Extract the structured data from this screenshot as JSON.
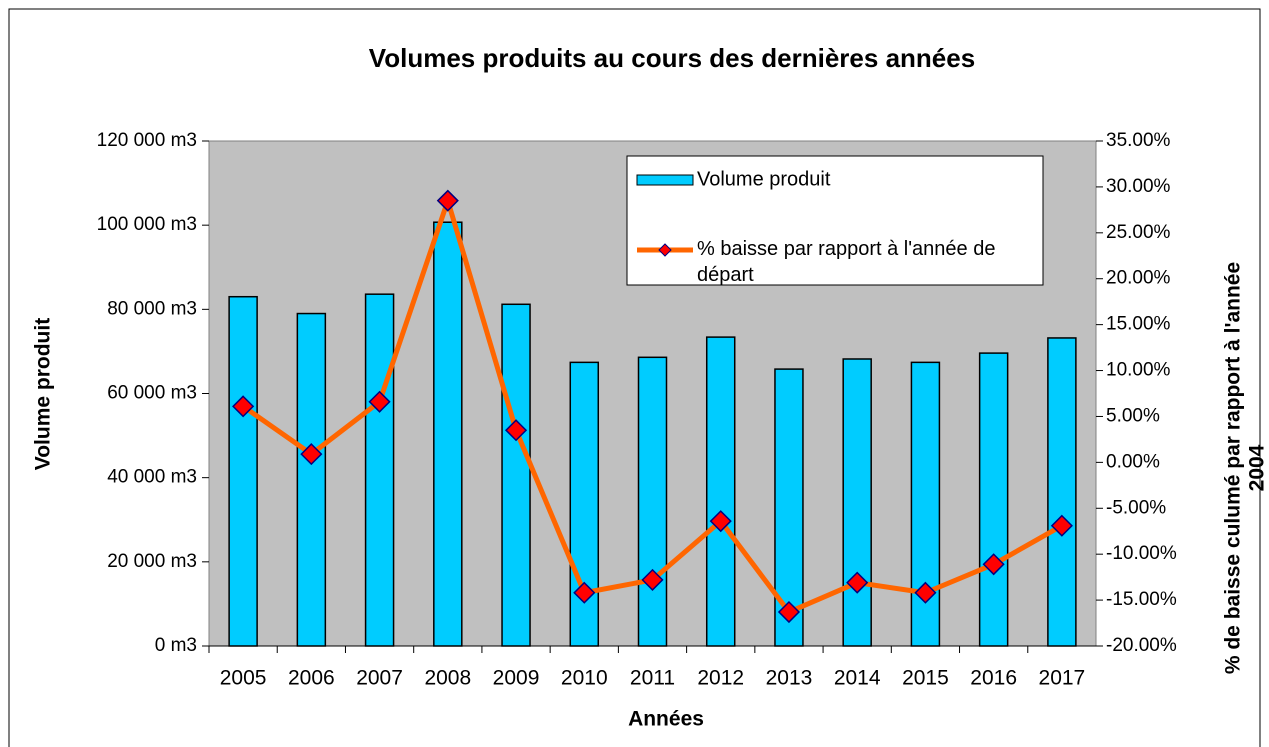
{
  "chart_data": {
    "type": "bar_line",
    "title": "Volumes produits au cours des dernières années",
    "xlabel": "Années",
    "ylabel": "Volume produit",
    "y2label": [
      "% de baisse culumé par rapport à l'année",
      "2004"
    ],
    "categories": [
      "2005",
      "2006",
      "2007",
      "2008",
      "2009",
      "2010",
      "2011",
      "2012",
      "2013",
      "2014",
      "2015",
      "2016",
      "2017"
    ],
    "series": [
      {
        "name": "Volume produit",
        "type": "bar",
        "color": "#00ccff",
        "values": [
          83000,
          79000,
          83600,
          100700,
          81200,
          67400,
          68600,
          73400,
          65800,
          68200,
          67400,
          69600,
          73200
        ]
      },
      {
        "name": "% baisse par rapport à l'année de départ",
        "type": "line",
        "axis": "y2",
        "color": "#ff6600",
        "marker_color": "#ff0000",
        "values": [
          6.1,
          0.9,
          6.6,
          28.5,
          3.5,
          -14.2,
          -12.8,
          -6.4,
          -16.3,
          -13.1,
          -14.2,
          -11.1,
          -6.9
        ]
      }
    ],
    "ylim": [
      0,
      120000
    ],
    "yticks": [
      {
        "value": 0,
        "label": "0 m3"
      },
      {
        "value": 20000,
        "label": "20 000 m3"
      },
      {
        "value": 40000,
        "label": "40 000 m3"
      },
      {
        "value": 60000,
        "label": "60 000 m3"
      },
      {
        "value": 80000,
        "label": "80 000 m3"
      },
      {
        "value": 100000,
        "label": "100 000 m3"
      },
      {
        "value": 120000,
        "label": "120 000 m3"
      }
    ],
    "y2lim": [
      -20,
      35
    ],
    "y2ticks": [
      {
        "value": -20,
        "label": "-20.00%"
      },
      {
        "value": -15,
        "label": "-15.00%"
      },
      {
        "value": -10,
        "label": "-10.00%"
      },
      {
        "value": -5,
        "label": "-5.00%"
      },
      {
        "value": 0,
        "label": "0.00%"
      },
      {
        "value": 5,
        "label": "5.00%"
      },
      {
        "value": 10,
        "label": "10.00%"
      },
      {
        "value": 15,
        "label": "15.00%"
      },
      {
        "value": 20,
        "label": "20.00%"
      },
      {
        "value": 25,
        "label": "25.00%"
      },
      {
        "value": 30,
        "label": "30.00%"
      },
      {
        "value": 35,
        "label": "35.00%"
      }
    ],
    "plot_background": "#c0c0c0",
    "legend": "upper right"
  }
}
